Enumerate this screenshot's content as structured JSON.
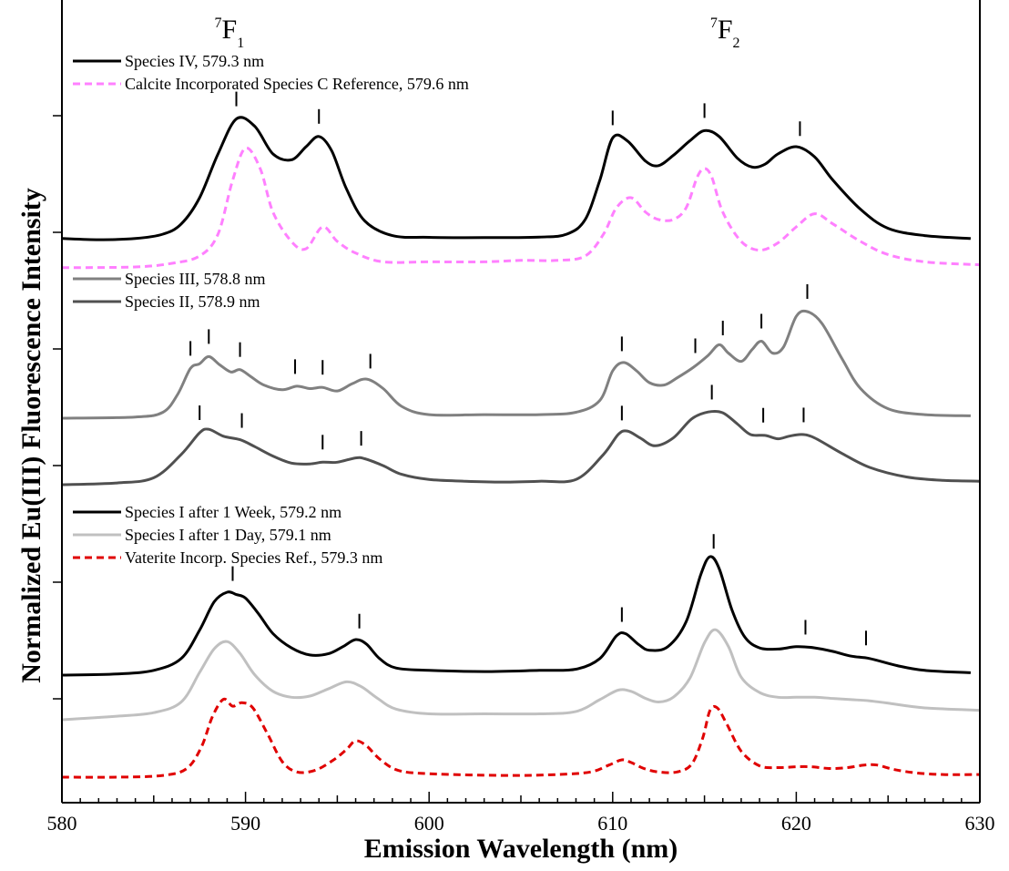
{
  "chart_data": {
    "type": "line",
    "xlabel": "Emission Wavelength (nm)",
    "ylabel": "Normalized Eu(III) Fluorescence Intensity",
    "xlim": [
      580,
      630
    ],
    "x_ticks": [
      "580",
      "590",
      "600",
      "610",
      "620",
      "630"
    ],
    "y_tick_count": 6,
    "grid": false,
    "band_labels": [
      {
        "sup": "7",
        "main": "F",
        "sub": "1",
        "x": 589.5
      },
      {
        "sup": "7",
        "main": "F",
        "sub": "2",
        "x": 616.5
      }
    ],
    "legends": [
      {
        "group": 1,
        "entries": [
          {
            "label": "Species IV, 579.3 nm",
            "color": "#000000",
            "dash": false
          },
          {
            "label": "Calcite Incorporated Species C Reference, 579.6 nm",
            "color": "#ff80ff",
            "dash": true
          }
        ]
      },
      {
        "group": 2,
        "entries": [
          {
            "label": "Species III, 578.8 nm",
            "color": "#808080",
            "dash": false
          },
          {
            "label": "Species II, 578.9 nm",
            "color": "#505050",
            "dash": false
          }
        ]
      },
      {
        "group": 3,
        "entries": [
          {
            "label": "Species I after 1 Week, 579.2 nm",
            "color": "#000000",
            "dash": false
          },
          {
            "label": "Species I after 1 Day, 579.1 nm",
            "color": "#c0c0c0",
            "dash": false
          },
          {
            "label": "Vaterite Incorp. Species Ref., 579.3 nm",
            "color": "#e00000",
            "dash": true
          }
        ]
      }
    ],
    "series": [
      {
        "name": "Species IV, 579.3 nm",
        "color": "#000000",
        "dash": false,
        "x_end": 629.5,
        "x": [
          580,
          582,
          584,
          585.5,
          586.5,
          587.5,
          588.5,
          589.5,
          590.5,
          591.5,
          592.5,
          593.3,
          594,
          594.7,
          595.5,
          596.5,
          598,
          600,
          603,
          606,
          607.5,
          608.5,
          609.3,
          610,
          610.8,
          611.8,
          612.5,
          613.3,
          614.2,
          615,
          615.8,
          616.8,
          617.6,
          618.3,
          619,
          620,
          621,
          622,
          623.5,
          625,
          627,
          629.5
        ],
        "y": [
          0.02,
          0.012,
          0.02,
          0.05,
          0.12,
          0.3,
          0.6,
          0.84,
          0.79,
          0.6,
          0.56,
          0.65,
          0.72,
          0.62,
          0.36,
          0.14,
          0.04,
          0.028,
          0.026,
          0.03,
          0.05,
          0.15,
          0.42,
          0.71,
          0.69,
          0.55,
          0.52,
          0.59,
          0.69,
          0.76,
          0.72,
          0.57,
          0.51,
          0.53,
          0.6,
          0.65,
          0.58,
          0.42,
          0.22,
          0.09,
          0.04,
          0.02
        ]
      },
      {
        "name": "Calcite Incorporated Species C Reference, 579.6 nm",
        "color": "#ff80ff",
        "dash": true,
        "x_end": 630,
        "x": [
          580,
          584,
          586,
          587.5,
          588.5,
          589.3,
          590,
          590.8,
          591.5,
          592.5,
          593.3,
          594.2,
          595,
          596,
          597.5,
          600,
          603,
          605,
          607,
          608.5,
          609.5,
          610.2,
          611,
          611.8,
          612.5,
          613.3,
          614,
          614.6,
          615,
          615.4,
          616,
          617,
          618,
          619,
          620,
          621,
          622,
          623.5,
          625,
          627,
          630
        ],
        "y": [
          -0.18,
          -0.175,
          -0.15,
          -0.1,
          0.05,
          0.42,
          0.64,
          0.5,
          0.2,
          0.0,
          -0.05,
          0.1,
          0.0,
          -0.08,
          -0.14,
          -0.14,
          -0.14,
          -0.13,
          -0.13,
          -0.1,
          0.05,
          0.23,
          0.3,
          0.2,
          0.15,
          0.15,
          0.23,
          0.44,
          0.5,
          0.44,
          0.2,
          0.0,
          -0.06,
          -0.01,
          0.1,
          0.19,
          0.12,
          0.0,
          -0.09,
          -0.14,
          -0.16
        ]
      },
      {
        "name": "Species III, 578.8 nm",
        "color": "#808080",
        "dash": false,
        "x_end": 629.5,
        "x": [
          580,
          584,
          585.5,
          586.3,
          587,
          587.5,
          588,
          588.6,
          589.2,
          589.7,
          590.3,
          591,
          592,
          592.8,
          593.5,
          594.2,
          595,
          595.8,
          596.6,
          597.5,
          598.5,
          600,
          603,
          606,
          608,
          609.3,
          610,
          610.6,
          611.3,
          612,
          612.8,
          613.5,
          614.4,
          615.2,
          615.8,
          616.3,
          617,
          617.6,
          618.1,
          618.7,
          619.3,
          620,
          620.6,
          621.4,
          622.5,
          623.5,
          625,
          627,
          629.5
        ],
        "y": [
          0.0,
          0.01,
          0.05,
          0.2,
          0.42,
          0.46,
          0.52,
          0.45,
          0.39,
          0.41,
          0.35,
          0.28,
          0.24,
          0.27,
          0.25,
          0.26,
          0.23,
          0.29,
          0.33,
          0.25,
          0.1,
          0.03,
          0.03,
          0.03,
          0.05,
          0.15,
          0.4,
          0.47,
          0.4,
          0.3,
          0.28,
          0.34,
          0.43,
          0.53,
          0.62,
          0.55,
          0.48,
          0.58,
          0.65,
          0.55,
          0.6,
          0.86,
          0.9,
          0.8,
          0.5,
          0.25,
          0.08,
          0.03,
          0.02
        ]
      },
      {
        "name": "Species II, 578.9 nm",
        "color": "#505050",
        "dash": false,
        "x_end": 630,
        "x": [
          580,
          583,
          585,
          586.5,
          587.5,
          588,
          588.8,
          589.7,
          590.5,
          591.5,
          592.5,
          593.5,
          594.2,
          595,
          596,
          596.5,
          597.5,
          598.5,
          600,
          602,
          604,
          606,
          608,
          609.5,
          610.3,
          610.8,
          611.5,
          612.3,
          613.3,
          614.3,
          615.2,
          616,
          616.8,
          617.5,
          618.3,
          619,
          619.6,
          620.3,
          621,
          622.5,
          624,
          626,
          628,
          630
        ],
        "y": [
          0.0,
          0.02,
          0.08,
          0.35,
          0.6,
          0.64,
          0.56,
          0.52,
          0.44,
          0.33,
          0.25,
          0.24,
          0.26,
          0.26,
          0.31,
          0.3,
          0.22,
          0.12,
          0.06,
          0.04,
          0.03,
          0.04,
          0.06,
          0.35,
          0.58,
          0.62,
          0.54,
          0.45,
          0.54,
          0.76,
          0.84,
          0.83,
          0.7,
          0.58,
          0.57,
          0.53,
          0.56,
          0.58,
          0.54,
          0.36,
          0.2,
          0.09,
          0.05,
          0.04
        ]
      },
      {
        "name": "Species I after 1 Week, 579.2 nm",
        "color": "#000000",
        "dash": false,
        "x_end": 629.5,
        "x": [
          580,
          583,
          585,
          586.5,
          587.5,
          588.3,
          589,
          589.5,
          590,
          590.7,
          591.5,
          592.5,
          593.5,
          594.5,
          595.3,
          596,
          596.6,
          597.3,
          598.2,
          600,
          603,
          606,
          608,
          609.3,
          610.2,
          610.7,
          611.4,
          612,
          613,
          614,
          614.8,
          615.3,
          615.8,
          616.5,
          617.2,
          618,
          619,
          620,
          621,
          622,
          623,
          624,
          625.5,
          627,
          629.5
        ],
        "y": [
          0.0,
          0.01,
          0.04,
          0.14,
          0.38,
          0.62,
          0.7,
          0.68,
          0.65,
          0.52,
          0.35,
          0.23,
          0.17,
          0.18,
          0.24,
          0.3,
          0.26,
          0.14,
          0.06,
          0.04,
          0.03,
          0.04,
          0.05,
          0.14,
          0.33,
          0.35,
          0.26,
          0.21,
          0.24,
          0.45,
          0.85,
          1.0,
          0.9,
          0.55,
          0.32,
          0.23,
          0.22,
          0.24,
          0.23,
          0.2,
          0.16,
          0.14,
          0.08,
          0.04,
          0.02
        ]
      },
      {
        "name": "Species I after 1 Day, 579.1 nm",
        "color": "#c0c0c0",
        "dash": false,
        "x_end": 630,
        "x": [
          580,
          583,
          585,
          586.5,
          587.5,
          588.3,
          589,
          589.7,
          590.5,
          591.5,
          592.5,
          593.5,
          594.5,
          595.5,
          596.3,
          597.2,
          598.2,
          600,
          603,
          606,
          608,
          609.3,
          610.3,
          611,
          611.8,
          612.5,
          613.3,
          614.2,
          615,
          615.6,
          616.3,
          617,
          618,
          619,
          620,
          621,
          622,
          623,
          624,
          625,
          627,
          630
        ],
        "y": [
          0.0,
          0.03,
          0.06,
          0.15,
          0.4,
          0.6,
          0.66,
          0.56,
          0.38,
          0.24,
          0.19,
          0.2,
          0.26,
          0.32,
          0.28,
          0.18,
          0.09,
          0.05,
          0.05,
          0.05,
          0.07,
          0.17,
          0.25,
          0.24,
          0.18,
          0.15,
          0.19,
          0.35,
          0.65,
          0.76,
          0.62,
          0.36,
          0.23,
          0.19,
          0.19,
          0.19,
          0.18,
          0.17,
          0.16,
          0.14,
          0.1,
          0.08
        ]
      },
      {
        "name": "Vaterite Incorp. Species Ref., 579.3 nm",
        "color": "#e00000",
        "dash": true,
        "x_end": 630,
        "x": [
          580,
          583,
          585.5,
          586.8,
          587.6,
          588.2,
          588.8,
          589.3,
          589.8,
          590.4,
          591.2,
          592,
          592.8,
          593.8,
          594.8,
          595.5,
          596,
          596.6,
          597.3,
          598.3,
          600,
          604,
          607,
          608.8,
          609.8,
          610.5,
          611,
          611.7,
          612.5,
          613.5,
          614.3,
          614.9,
          615.3,
          615.7,
          616.2,
          617,
          618,
          619,
          620,
          620.8,
          621.8,
          622.8,
          623.7,
          624.4,
          625.3,
          626.5,
          628,
          630
        ],
        "y": [
          0.0,
          0.0,
          0.02,
          0.1,
          0.35,
          0.7,
          0.9,
          0.82,
          0.86,
          0.8,
          0.5,
          0.18,
          0.06,
          0.08,
          0.2,
          0.32,
          0.42,
          0.36,
          0.21,
          0.08,
          0.04,
          0.02,
          0.03,
          0.06,
          0.14,
          0.2,
          0.17,
          0.1,
          0.06,
          0.06,
          0.15,
          0.45,
          0.77,
          0.8,
          0.62,
          0.3,
          0.13,
          0.11,
          0.12,
          0.12,
          0.1,
          0.11,
          0.14,
          0.14,
          0.09,
          0.05,
          0.03,
          0.03
        ]
      }
    ],
    "peak_markers": [
      {
        "group": 1,
        "x": [
          589.5,
          594,
          610,
          615,
          620.2
        ]
      },
      {
        "group": 2,
        "x": [
          587,
          588,
          589.7,
          592.7,
          594.2,
          596.8,
          610.5,
          614.5,
          616,
          618.1,
          620.6
        ]
      },
      {
        "group": 3,
        "x": [
          587.5,
          589.8,
          594.2,
          596.3,
          610.5,
          615.4,
          618.2,
          620.4
        ]
      },
      {
        "group": 4,
        "x": [
          589.3,
          596.2,
          610.5,
          615.5,
          620.5,
          623.8
        ]
      }
    ]
  }
}
